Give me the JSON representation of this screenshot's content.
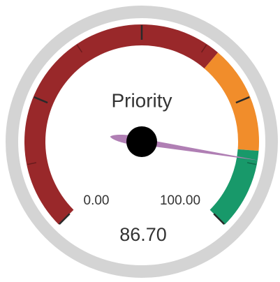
{
  "chart_data": {
    "type": "gauge",
    "title": "Priority",
    "value": 86.7,
    "value_label": "86.70",
    "ylim": [
      0,
      100
    ],
    "ylim_labels": [
      "0.00",
      "100.00"
    ],
    "major_ticks": [
      0,
      25,
      50,
      75,
      100
    ],
    "minor_ticks": [
      12.5,
      37.5,
      62.5,
      87.5
    ],
    "bands": [
      {
        "from": 0,
        "to": 65,
        "color": "#99282a"
      },
      {
        "from": 65,
        "to": 85,
        "color": "#f18d2b"
      },
      {
        "from": 85,
        "to": 100,
        "color": "#18996a"
      }
    ],
    "needle_color": "#b07fb4"
  }
}
